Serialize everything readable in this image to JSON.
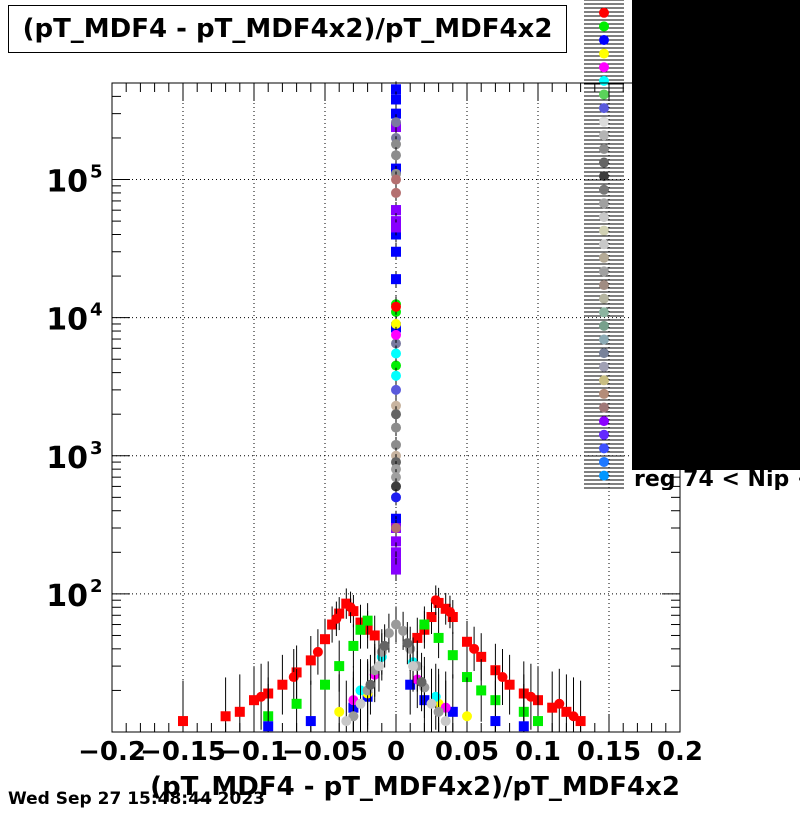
{
  "title": "(pT_MDF4 - pT_MDF4x2)/pT_MDF4x2",
  "footer": {
    "timestamp": "Wed Sep 27 15:48:44 2023"
  },
  "chart_data": {
    "type": "scatter",
    "title": "(pT_MDF4 - pT_MDF4x2)/pT_MDF4x2",
    "xlabel": "(pT_MDF4 - pT_MDF4x2)/pT_MDF4x2",
    "ylabel": "",
    "xlim": [
      -0.2,
      0.2
    ],
    "ylim": [
      10,
      500000
    ],
    "y_scale": "log",
    "grid": true,
    "x_ticks": [
      {
        "v": -0.2,
        "label": "−0.2"
      },
      {
        "v": -0.15,
        "label": "−0.15"
      },
      {
        "v": -0.1,
        "label": "−0.1"
      },
      {
        "v": -0.05,
        "label": "−0.05"
      },
      {
        "v": 0,
        "label": "0"
      },
      {
        "v": 0.05,
        "label": "0.05"
      },
      {
        "v": 0.1,
        "label": "0.1"
      },
      {
        "v": 0.15,
        "label": "0.15"
      },
      {
        "v": 0.2,
        "label": "0.2"
      }
    ],
    "y_ticks": [
      {
        "v": 100,
        "base": "10",
        "exp": "2"
      },
      {
        "v": 1000,
        "base": "10",
        "exp": "3"
      },
      {
        "v": 10000,
        "base": "10",
        "exp": "4"
      },
      {
        "v": 100000,
        "base": "10",
        "exp": "5"
      }
    ],
    "legend_placement": "top-right",
    "legend_label_visible": "reg 74 < Nip <",
    "series": [
      {
        "color": "#ff0000",
        "marker": "square",
        "points": [
          [
            -0.15,
            12
          ],
          [
            -0.12,
            13
          ],
          [
            -0.11,
            14
          ],
          [
            -0.1,
            17
          ],
          [
            -0.09,
            19
          ],
          [
            -0.08,
            22
          ],
          [
            -0.07,
            27
          ],
          [
            -0.06,
            33
          ],
          [
            -0.05,
            47
          ],
          [
            -0.045,
            60
          ],
          [
            -0.04,
            72
          ],
          [
            -0.035,
            85
          ],
          [
            -0.03,
            75
          ],
          [
            -0.025,
            62
          ],
          [
            -0.02,
            55
          ],
          [
            -0.015,
            50
          ],
          [
            0.015,
            48
          ],
          [
            0.02,
            55
          ],
          [
            0.025,
            68
          ],
          [
            0.03,
            86
          ],
          [
            0.035,
            78
          ],
          [
            0.04,
            68
          ],
          [
            0.05,
            45
          ],
          [
            0.06,
            35
          ],
          [
            0.07,
            28
          ],
          [
            0.08,
            22
          ],
          [
            0.09,
            19
          ],
          [
            0.1,
            17
          ],
          [
            0.11,
            15
          ],
          [
            0.12,
            14
          ],
          [
            0.13,
            12
          ]
        ]
      },
      {
        "color": "#ff0000",
        "marker": "circle",
        "points": [
          [
            -0.095,
            18
          ],
          [
            -0.072,
            25
          ],
          [
            -0.055,
            38
          ],
          [
            -0.042,
            66
          ],
          [
            -0.032,
            80
          ],
          [
            0.028,
            90
          ],
          [
            0.038,
            74
          ],
          [
            0.055,
            40
          ],
          [
            0.075,
            25
          ],
          [
            0.095,
            18
          ],
          [
            0.115,
            16
          ],
          [
            0.125,
            13
          ]
        ]
      },
      {
        "color": "#00ee00",
        "marker": "square",
        "points": [
          [
            -0.09,
            13
          ],
          [
            -0.07,
            16
          ],
          [
            -0.05,
            22
          ],
          [
            -0.04,
            30
          ],
          [
            -0.03,
            42
          ],
          [
            -0.025,
            55
          ],
          [
            -0.02,
            64
          ],
          [
            0.02,
            60
          ],
          [
            0.03,
            48
          ],
          [
            0.04,
            36
          ],
          [
            0.05,
            25
          ],
          [
            0.06,
            20
          ],
          [
            0.07,
            17
          ],
          [
            0.09,
            14
          ],
          [
            0.1,
            12
          ]
        ]
      },
      {
        "color": "#0000ff",
        "marker": "square",
        "points": [
          [
            -0.09,
            11
          ],
          [
            -0.06,
            12
          ],
          [
            -0.03,
            15
          ],
          [
            -0.02,
            18
          ],
          [
            0.01,
            22
          ],
          [
            0.02,
            17
          ],
          [
            0.04,
            14
          ],
          [
            0.07,
            12
          ],
          [
            0.09,
            11
          ]
        ]
      },
      {
        "color": "#ffff00",
        "marker": "circle",
        "points": [
          [
            -0.04,
            14
          ],
          [
            -0.02,
            19
          ],
          [
            0.03,
            16
          ],
          [
            0.05,
            13
          ]
        ]
      },
      {
        "color": "#ff00ff",
        "marker": "circle",
        "points": [
          [
            -0.03,
            17
          ],
          [
            -0.015,
            26
          ],
          [
            0.015,
            24
          ],
          [
            0.035,
            15
          ]
        ]
      },
      {
        "color": "#00ffff",
        "marker": "circle",
        "points": [
          [
            -0.025,
            20
          ],
          [
            -0.01,
            35
          ],
          [
            0.012,
            32
          ],
          [
            0.028,
            18
          ]
        ]
      },
      {
        "color": "#9a9a9a",
        "marker": "circle",
        "points": [
          [
            -0.03,
            13
          ],
          [
            -0.02,
            20
          ],
          [
            -0.015,
            28
          ],
          [
            -0.01,
            38
          ],
          [
            -0.005,
            52
          ],
          [
            0,
            60
          ],
          [
            0.005,
            54
          ],
          [
            0.01,
            40
          ],
          [
            0.015,
            30
          ],
          [
            0.02,
            21
          ],
          [
            0.03,
            14
          ]
        ]
      },
      {
        "color": "#c8c8c8",
        "marker": "circle",
        "points": [
          [
            -0.035,
            12
          ],
          [
            -0.025,
            16
          ],
          [
            -0.012,
            30
          ],
          [
            0.012,
            30
          ],
          [
            0.025,
            16
          ],
          [
            0.035,
            12
          ]
        ]
      },
      {
        "color": "#646464",
        "marker": "circle",
        "points": [
          [
            -0.018,
            22
          ],
          [
            -0.008,
            42
          ],
          [
            0.008,
            44
          ],
          [
            0.018,
            23
          ]
        ]
      },
      {
        "color": "#0000ff",
        "marker": "square",
        "points": [
          [
            0,
            450000
          ],
          [
            0,
            380000
          ],
          [
            0,
            300000
          ],
          [
            0,
            120000
          ],
          [
            0,
            60000
          ],
          [
            0,
            40000
          ],
          [
            0,
            30000
          ],
          [
            0,
            19000
          ],
          [
            0,
            8500
          ],
          [
            0,
            350
          ],
          [
            0,
            320
          ]
        ]
      },
      {
        "color": "#8800ff",
        "marker": "square",
        "points": [
          [
            0,
            240000
          ],
          [
            0,
            60000
          ],
          [
            0,
            50000
          ],
          [
            0,
            45000
          ],
          [
            0,
            300
          ],
          [
            0,
            240
          ],
          [
            0,
            200
          ],
          [
            0,
            170
          ],
          [
            0,
            150
          ]
        ]
      },
      {
        "color": "#7a7aa0",
        "marker": "circle",
        "points": [
          [
            0,
            260000
          ],
          [
            0,
            200000
          ],
          [
            0,
            6500
          ]
        ]
      },
      {
        "color": "#8c8c8c",
        "marker": "circle",
        "points": [
          [
            0,
            180000
          ],
          [
            0,
            150000
          ],
          [
            0,
            110000
          ],
          [
            0,
            1600
          ],
          [
            0,
            1200
          ]
        ]
      },
      {
        "color": "#b47070",
        "marker": "circle",
        "points": [
          [
            0,
            100000
          ],
          [
            0,
            80000
          ],
          [
            0,
            300
          ]
        ]
      },
      {
        "color": "#00ee00",
        "marker": "circle",
        "points": [
          [
            0,
            12500
          ],
          [
            0,
            11000
          ],
          [
            0,
            4500
          ]
        ]
      },
      {
        "color": "#ff0000",
        "marker": "circle",
        "points": [
          [
            0,
            12000
          ]
        ]
      },
      {
        "color": "#ffff00",
        "marker": "circle",
        "points": [
          [
            0,
            9000
          ]
        ]
      },
      {
        "color": "#ff00ff",
        "marker": "circle",
        "points": [
          [
            0,
            7500
          ]
        ]
      },
      {
        "color": "#00ffff",
        "marker": "circle",
        "points": [
          [
            0,
            5500
          ],
          [
            0,
            3800
          ]
        ]
      },
      {
        "color": "#5a5adc",
        "marker": "circle",
        "points": [
          [
            0,
            3000
          ]
        ]
      },
      {
        "color": "#c8b4a0",
        "marker": "circle",
        "points": [
          [
            0,
            2300
          ],
          [
            0,
            1000
          ]
        ]
      },
      {
        "color": "#646464",
        "marker": "circle",
        "points": [
          [
            0,
            2000
          ],
          [
            0,
            900
          ]
        ]
      },
      {
        "color": "#a0a0a0",
        "marker": "circle",
        "points": [
          [
            0,
            800
          ],
          [
            0,
            700
          ]
        ]
      },
      {
        "color": "#3c3c3c",
        "marker": "circle",
        "points": [
          [
            0,
            600
          ]
        ]
      },
      {
        "color": "#1e1ef0",
        "marker": "circle",
        "points": [
          [
            0,
            500
          ]
        ]
      }
    ],
    "legend_entries": [
      {
        "color": "#ff0000",
        "marker": "circle"
      },
      {
        "color": "#00ee00",
        "marker": "circle"
      },
      {
        "color": "#0000ff",
        "marker": "circle"
      },
      {
        "color": "#ffff00",
        "marker": "circle"
      },
      {
        "color": "#ff00ff",
        "marker": "circle"
      },
      {
        "color": "#00ffff",
        "marker": "circle"
      },
      {
        "color": "#5ad25a",
        "marker": "circle"
      },
      {
        "color": "#5a5adc",
        "marker": "circle"
      },
      {
        "color": "#dcdcdc",
        "marker": "circle"
      },
      {
        "color": "#b4b4b4",
        "marker": "circle"
      },
      {
        "color": "#8c8c8c",
        "marker": "circle"
      },
      {
        "color": "#646464",
        "marker": "circle"
      },
      {
        "color": "#3c3c3c",
        "marker": "circle"
      },
      {
        "color": "#787878",
        "marker": "circle"
      },
      {
        "color": "#a0a0a0",
        "marker": "circle"
      },
      {
        "color": "#c8c8c8",
        "marker": "circle"
      },
      {
        "color": "#d2d2b4",
        "marker": "circle"
      },
      {
        "color": "#c8c8c8",
        "marker": "circle"
      },
      {
        "color": "#b4aa96",
        "marker": "circle"
      },
      {
        "color": "#a0a0a0",
        "marker": "circle"
      },
      {
        "color": "#a08c82",
        "marker": "circle"
      },
      {
        "color": "#b4b4a0",
        "marker": "circle"
      },
      {
        "color": "#8cb4a0",
        "marker": "circle"
      },
      {
        "color": "#78a08c",
        "marker": "circle"
      },
      {
        "color": "#8caab4",
        "marker": "circle"
      },
      {
        "color": "#78829a",
        "marker": "circle"
      },
      {
        "color": "#a0a0b4",
        "marker": "circle"
      },
      {
        "color": "#c8be82",
        "marker": "circle"
      },
      {
        "color": "#b48c78",
        "marker": "circle"
      },
      {
        "color": "#a07878",
        "marker": "circle"
      },
      {
        "color": "#8c00ff",
        "marker": "circle"
      },
      {
        "color": "#6428ff",
        "marker": "circle"
      },
      {
        "color": "#3c50ff",
        "marker": "circle"
      },
      {
        "color": "#1e78ff",
        "marker": "circle"
      },
      {
        "color": "#0096ff",
        "marker": "circle"
      }
    ]
  }
}
